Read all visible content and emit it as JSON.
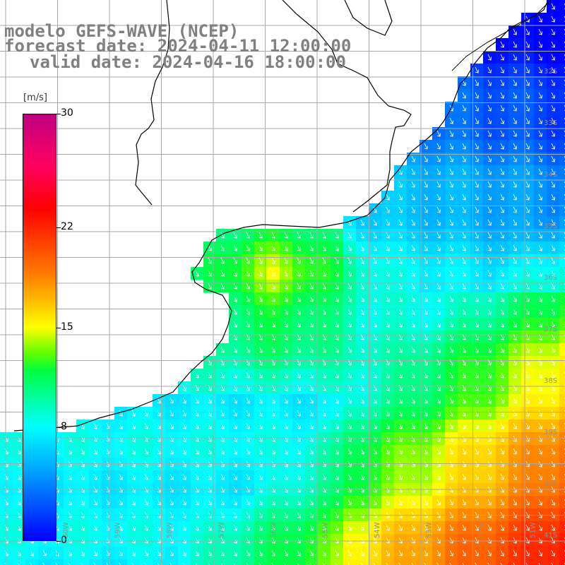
{
  "header": {
    "model": "modelo GEFS-WAVE (NCEP)",
    "forecast": "forecast date: 2024-04-11 12:00:00",
    "valid": "valid date: 2024-04-16 18:00:00"
  },
  "colorbar": {
    "unit": "[m/s]",
    "ticks": [
      {
        "label": "30",
        "value": 30
      },
      {
        "label": "22",
        "value": 22
      },
      {
        "label": "15",
        "value": 15
      },
      {
        "label": "8",
        "value": 8
      },
      {
        "label": "0",
        "value": 0
      }
    ],
    "range": [
      0,
      30
    ]
  },
  "map": {
    "lon_labels": [
      "60W",
      "59W",
      "58W",
      "57W",
      "56W",
      "55W",
      "54W",
      "53W",
      "52W",
      "51W"
    ],
    "lat_labels": [
      "32S",
      "33S",
      "34S",
      "35S",
      "36S",
      "37S",
      "38S",
      "39S",
      "40S",
      "41S"
    ],
    "wind_direction": "from north-west",
    "colors": {
      "land": "#ffffff",
      "coast": "#000000",
      "grid": "#a8a8a8"
    }
  }
}
